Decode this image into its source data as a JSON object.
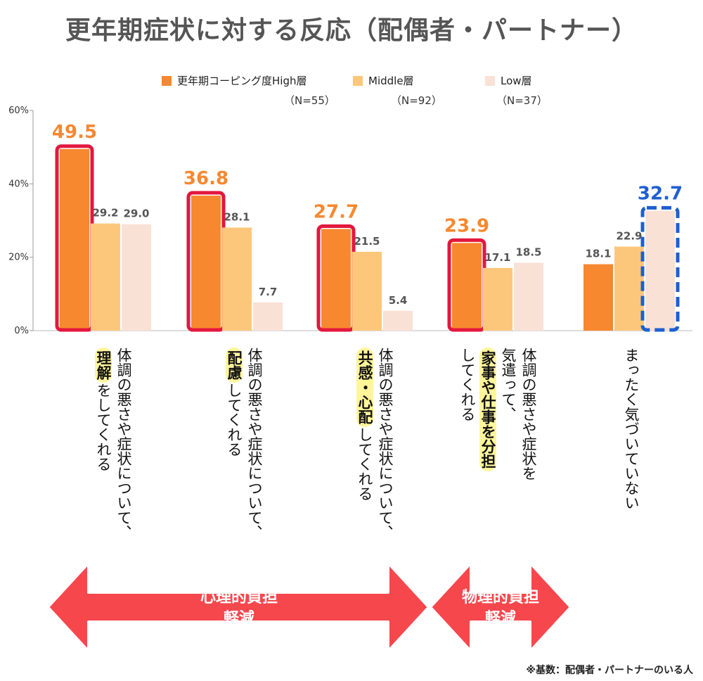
{
  "title": "更年期症状に対する反応（配偶者・パートナー）",
  "chart_data": {
    "type": "bar",
    "title": "更年期症状に対する反応（配偶者・パートナー）",
    "ylim": [
      0,
      60
    ],
    "yticks": [
      0,
      20,
      40,
      60
    ],
    "ytick_labels": [
      "0%",
      "20%",
      "40%",
      "60%"
    ],
    "grid": false,
    "legend_placement": "top",
    "categories": [
      "体調の悪さや症状について、理解をしてくれる",
      "体調の悪さや症状について、配慮してくれる",
      "体調の悪さや症状について、共感・心配してくれる",
      "体調の悪さや症状を気遣って、家事や仕事を分担してくれる",
      "まったく気づいていない"
    ],
    "series": [
      {
        "name": "更年期コーピング度High層",
        "n_label": "（N=55）",
        "color": "#f7882f",
        "values": [
          49.5,
          36.8,
          27.7,
          23.9,
          18.1
        ]
      },
      {
        "name": "Middle層",
        "n_label": "（N=92）",
        "color": "#fdc77b",
        "values": [
          29.2,
          28.1,
          21.5,
          17.1,
          22.9
        ]
      },
      {
        "name": "Low層",
        "n_label": "（N=37）",
        "color": "#f9e1d6",
        "values": [
          29.0,
          7.7,
          5.4,
          18.5,
          32.7
        ]
      }
    ],
    "value_labels": [
      [
        "49.5",
        "29.2",
        "29.0"
      ],
      [
        "36.8",
        "28.1",
        "7.7"
      ],
      [
        "27.7",
        "21.5",
        "5.4"
      ],
      [
        "23.9",
        "17.1",
        "18.5"
      ],
      [
        "18.1",
        "22.9",
        "32.7"
      ]
    ],
    "emphasis": [
      {
        "category": 0,
        "series": 0,
        "style": "solid",
        "color": "#e3173e"
      },
      {
        "category": 1,
        "series": 0,
        "style": "solid",
        "color": "#e3173e"
      },
      {
        "category": 2,
        "series": 0,
        "style": "solid",
        "color": "#e3173e"
      },
      {
        "category": 3,
        "series": 0,
        "style": "solid",
        "color": "#e3173e"
      },
      {
        "category": 4,
        "series": 2,
        "style": "dashed",
        "color": "#1d5fd1"
      }
    ],
    "emphasis_label_colors": {
      "orange": "#f7882f",
      "blue": "#1d5fd1",
      "normal": "#555555"
    }
  },
  "category_labels": [
    {
      "columns": [
        [
          {
            "t": "体調の悪さや症状について、"
          }
        ],
        [
          {
            "t": "理解",
            "hl": true
          },
          {
            "t": "をしてくれる"
          }
        ]
      ]
    },
    {
      "columns": [
        [
          {
            "t": "体調の悪さや症状について、"
          }
        ],
        [
          {
            "t": "配慮",
            "hl": true
          },
          {
            "t": "してくれる"
          }
        ]
      ]
    },
    {
      "columns": [
        [
          {
            "t": "体調の悪さや症状について、"
          }
        ],
        [
          {
            "t": "共感・心配",
            "hl": true
          },
          {
            "t": "してくれる"
          }
        ]
      ]
    },
    {
      "columns": [
        [
          {
            "t": "体調の悪さや症状を"
          }
        ],
        [
          {
            "t": "気遣って、"
          }
        ],
        [
          {
            "t": "家事や仕事を分担",
            "hl": true
          }
        ],
        [
          {
            "t": "してくれる"
          }
        ]
      ]
    },
    {
      "columns": [
        [
          {
            "t": "まったく気づいていない"
          }
        ]
      ]
    }
  ],
  "arrows": [
    {
      "line1": "心理的負担",
      "line2": "軽減",
      "color": "#f6474d"
    },
    {
      "line1": "物理的負担",
      "line2": "軽減",
      "color": "#f6474d"
    }
  ],
  "footnote": "※基数：配偶者・パートナーのいる人"
}
